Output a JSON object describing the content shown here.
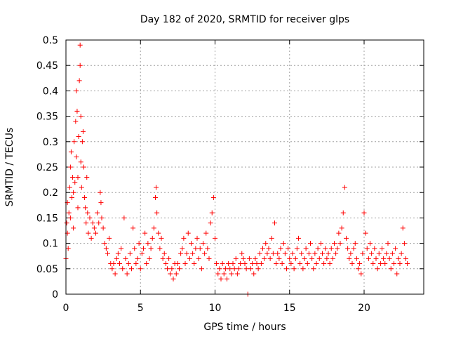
{
  "chart_data": {
    "type": "scatter",
    "title": "Day 182 of 2020, SRMTID for receiver glps",
    "xlabel": "GPS time / hours",
    "ylabel": "SRMTID / TECUs",
    "xlim": [
      0,
      24
    ],
    "ylim": [
      0,
      0.5
    ],
    "xticks": [
      0,
      5,
      10,
      15,
      20
    ],
    "xtick_labels": [
      "0",
      "5",
      "10",
      "15",
      "20"
    ],
    "yticks": [
      0,
      0.05,
      0.1,
      0.15,
      0.2,
      0.25,
      0.3,
      0.35,
      0.4,
      0.45,
      0.5
    ],
    "ytick_labels": [
      "0",
      "0.05",
      "0.1",
      "0.15",
      "0.2",
      "0.25",
      "0.3",
      "0.35",
      "0.4",
      "0.45",
      "0.5"
    ],
    "grid": true,
    "marker": "+",
    "color": "#ff0000",
    "series": [
      {
        "name": "SRMTID",
        "points": [
          [
            0.0,
            0.07
          ],
          [
            0.05,
            0.14
          ],
          [
            0.1,
            0.18
          ],
          [
            0.1,
            0.12
          ],
          [
            0.15,
            0.09
          ],
          [
            0.2,
            0.16
          ],
          [
            0.25,
            0.21
          ],
          [
            0.3,
            0.25
          ],
          [
            0.3,
            0.15
          ],
          [
            0.35,
            0.28
          ],
          [
            0.4,
            0.19
          ],
          [
            0.45,
            0.23
          ],
          [
            0.5,
            0.2
          ],
          [
            0.5,
            0.13
          ],
          [
            0.55,
            0.3
          ],
          [
            0.6,
            0.22
          ],
          [
            0.65,
            0.34
          ],
          [
            0.7,
            0.4
          ],
          [
            0.7,
            0.27
          ],
          [
            0.75,
            0.36
          ],
          [
            0.8,
            0.23
          ],
          [
            0.8,
            0.17
          ],
          [
            0.85,
            0.31
          ],
          [
            0.9,
            0.42
          ],
          [
            0.95,
            0.49
          ],
          [
            0.95,
            0.45
          ],
          [
            1.0,
            0.35
          ],
          [
            1.0,
            0.26
          ],
          [
            1.05,
            0.21
          ],
          [
            1.1,
            0.3
          ],
          [
            1.15,
            0.32
          ],
          [
            1.2,
            0.25
          ],
          [
            1.25,
            0.19
          ],
          [
            1.3,
            0.17
          ],
          [
            1.35,
            0.14
          ],
          [
            1.4,
            0.23
          ],
          [
            1.45,
            0.16
          ],
          [
            1.5,
            0.12
          ],
          [
            1.6,
            0.15
          ],
          [
            1.7,
            0.11
          ],
          [
            1.8,
            0.14
          ],
          [
            1.9,
            0.13
          ],
          [
            2.0,
            0.12
          ],
          [
            2.1,
            0.16
          ],
          [
            2.2,
            0.14
          ],
          [
            2.3,
            0.2
          ],
          [
            2.35,
            0.18
          ],
          [
            2.4,
            0.15
          ],
          [
            2.5,
            0.13
          ],
          [
            2.6,
            0.1
          ],
          [
            2.7,
            0.09
          ],
          [
            2.8,
            0.08
          ],
          [
            2.9,
            0.11
          ],
          [
            3.0,
            0.06
          ],
          [
            3.1,
            0.05
          ],
          [
            3.2,
            0.06
          ],
          [
            3.3,
            0.04
          ],
          [
            3.4,
            0.07
          ],
          [
            3.5,
            0.08
          ],
          [
            3.6,
            0.06
          ],
          [
            3.7,
            0.09
          ],
          [
            3.8,
            0.05
          ],
          [
            3.9,
            0.15
          ],
          [
            4.0,
            0.07
          ],
          [
            4.1,
            0.04
          ],
          [
            4.2,
            0.06
          ],
          [
            4.3,
            0.08
          ],
          [
            4.4,
            0.05
          ],
          [
            4.5,
            0.13
          ],
          [
            4.6,
            0.09
          ],
          [
            4.7,
            0.06
          ],
          [
            4.8,
            0.07
          ],
          [
            4.9,
            0.1
          ],
          [
            5.0,
            0.05
          ],
          [
            5.1,
            0.08
          ],
          [
            5.2,
            0.09
          ],
          [
            5.3,
            0.12
          ],
          [
            5.4,
            0.06
          ],
          [
            5.5,
            0.1
          ],
          [
            5.6,
            0.07
          ],
          [
            5.7,
            0.09
          ],
          [
            5.8,
            0.11
          ],
          [
            5.9,
            0.13
          ],
          [
            6.0,
            0.19
          ],
          [
            6.05,
            0.21
          ],
          [
            6.1,
            0.16
          ],
          [
            6.2,
            0.12
          ],
          [
            6.3,
            0.09
          ],
          [
            6.4,
            0.11
          ],
          [
            6.5,
            0.07
          ],
          [
            6.6,
            0.08
          ],
          [
            6.7,
            0.06
          ],
          [
            6.8,
            0.05
          ],
          [
            6.9,
            0.07
          ],
          [
            7.0,
            0.04
          ],
          [
            7.1,
            0.05
          ],
          [
            7.2,
            0.03
          ],
          [
            7.3,
            0.06
          ],
          [
            7.4,
            0.04
          ],
          [
            7.5,
            0.06
          ],
          [
            7.6,
            0.05
          ],
          [
            7.7,
            0.08
          ],
          [
            7.8,
            0.09
          ],
          [
            7.9,
            0.11
          ],
          [
            8.0,
            0.06
          ],
          [
            8.1,
            0.08
          ],
          [
            8.2,
            0.12
          ],
          [
            8.3,
            0.07
          ],
          [
            8.4,
            0.1
          ],
          [
            8.5,
            0.08
          ],
          [
            8.6,
            0.06
          ],
          [
            8.7,
            0.09
          ],
          [
            8.8,
            0.11
          ],
          [
            8.9,
            0.07
          ],
          [
            9.0,
            0.09
          ],
          [
            9.1,
            0.05
          ],
          [
            9.2,
            0.1
          ],
          [
            9.3,
            0.08
          ],
          [
            9.4,
            0.12
          ],
          [
            9.5,
            0.09
          ],
          [
            9.6,
            0.07
          ],
          [
            9.7,
            0.14
          ],
          [
            9.8,
            0.16
          ],
          [
            9.9,
            0.19
          ],
          [
            10.0,
            0.11
          ],
          [
            10.1,
            0.06
          ],
          [
            10.2,
            0.04
          ],
          [
            10.3,
            0.05
          ],
          [
            10.4,
            0.03
          ],
          [
            10.5,
            0.06
          ],
          [
            10.6,
            0.04
          ],
          [
            10.7,
            0.05
          ],
          [
            10.8,
            0.03
          ],
          [
            10.9,
            0.06
          ],
          [
            11.0,
            0.05
          ],
          [
            11.1,
            0.04
          ],
          [
            11.2,
            0.06
          ],
          [
            11.3,
            0.05
          ],
          [
            11.4,
            0.07
          ],
          [
            11.5,
            0.04
          ],
          [
            11.6,
            0.05
          ],
          [
            11.7,
            0.06
          ],
          [
            11.8,
            0.08
          ],
          [
            11.9,
            0.07
          ],
          [
            12.0,
            0.06
          ],
          [
            12.1,
            0.05
          ],
          [
            12.2,
            0.0
          ],
          [
            12.3,
            0.07
          ],
          [
            12.4,
            0.05
          ],
          [
            12.5,
            0.06
          ],
          [
            12.6,
            0.04
          ],
          [
            12.7,
            0.07
          ],
          [
            12.8,
            0.06
          ],
          [
            12.9,
            0.05
          ],
          [
            13.0,
            0.08
          ],
          [
            13.1,
            0.06
          ],
          [
            13.2,
            0.09
          ],
          [
            13.3,
            0.07
          ],
          [
            13.4,
            0.1
          ],
          [
            13.5,
            0.08
          ],
          [
            13.6,
            0.09
          ],
          [
            13.7,
            0.07
          ],
          [
            13.8,
            0.11
          ],
          [
            13.9,
            0.08
          ],
          [
            14.0,
            0.14
          ],
          [
            14.1,
            0.06
          ],
          [
            14.2,
            0.08
          ],
          [
            14.3,
            0.07
          ],
          [
            14.4,
            0.09
          ],
          [
            14.5,
            0.06
          ],
          [
            14.6,
            0.1
          ],
          [
            14.7,
            0.08
          ],
          [
            14.8,
            0.05
          ],
          [
            14.9,
            0.09
          ],
          [
            15.0,
            0.07
          ],
          [
            15.1,
            0.06
          ],
          [
            15.2,
            0.08
          ],
          [
            15.3,
            0.05
          ],
          [
            15.4,
            0.07
          ],
          [
            15.5,
            0.09
          ],
          [
            15.6,
            0.11
          ],
          [
            15.7,
            0.06
          ],
          [
            15.8,
            0.08
          ],
          [
            15.9,
            0.05
          ],
          [
            16.0,
            0.07
          ],
          [
            16.1,
            0.09
          ],
          [
            16.2,
            0.06
          ],
          [
            16.3,
            0.08
          ],
          [
            16.4,
            0.1
          ],
          [
            16.5,
            0.07
          ],
          [
            16.6,
            0.05
          ],
          [
            16.7,
            0.08
          ],
          [
            16.8,
            0.06
          ],
          [
            16.9,
            0.09
          ],
          [
            17.0,
            0.07
          ],
          [
            17.1,
            0.1
          ],
          [
            17.2,
            0.08
          ],
          [
            17.3,
            0.06
          ],
          [
            17.4,
            0.09
          ],
          [
            17.5,
            0.07
          ],
          [
            17.6,
            0.08
          ],
          [
            17.7,
            0.06
          ],
          [
            17.8,
            0.09
          ],
          [
            17.9,
            0.07
          ],
          [
            18.0,
            0.1
          ],
          [
            18.1,
            0.08
          ],
          [
            18.2,
            0.09
          ],
          [
            18.3,
            0.12
          ],
          [
            18.4,
            0.1
          ],
          [
            18.5,
            0.13
          ],
          [
            18.6,
            0.16
          ],
          [
            18.7,
            0.21
          ],
          [
            18.8,
            0.11
          ],
          [
            18.9,
            0.09
          ],
          [
            19.0,
            0.07
          ],
          [
            19.1,
            0.08
          ],
          [
            19.2,
            0.06
          ],
          [
            19.3,
            0.09
          ],
          [
            19.4,
            0.1
          ],
          [
            19.5,
            0.07
          ],
          [
            19.6,
            0.05
          ],
          [
            19.7,
            0.06
          ],
          [
            19.8,
            0.04
          ],
          [
            19.9,
            0.08
          ],
          [
            20.0,
            0.16
          ],
          [
            20.1,
            0.12
          ],
          [
            20.2,
            0.09
          ],
          [
            20.3,
            0.07
          ],
          [
            20.4,
            0.1
          ],
          [
            20.5,
            0.08
          ],
          [
            20.6,
            0.06
          ],
          [
            20.7,
            0.09
          ],
          [
            20.8,
            0.07
          ],
          [
            20.9,
            0.05
          ],
          [
            21.0,
            0.08
          ],
          [
            21.1,
            0.06
          ],
          [
            21.2,
            0.09
          ],
          [
            21.3,
            0.07
          ],
          [
            21.4,
            0.06
          ],
          [
            21.5,
            0.08
          ],
          [
            21.6,
            0.1
          ],
          [
            21.7,
            0.07
          ],
          [
            21.8,
            0.05
          ],
          [
            21.9,
            0.08
          ],
          [
            22.0,
            0.06
          ],
          [
            22.1,
            0.09
          ],
          [
            22.2,
            0.04
          ],
          [
            22.3,
            0.07
          ],
          [
            22.4,
            0.06
          ],
          [
            22.5,
            0.08
          ],
          [
            22.6,
            0.13
          ],
          [
            22.7,
            0.1
          ],
          [
            22.8,
            0.07
          ],
          [
            22.9,
            0.06
          ]
        ]
      }
    ]
  }
}
